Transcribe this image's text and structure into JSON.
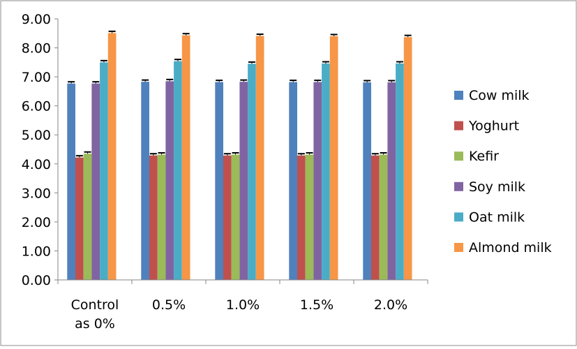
{
  "chart_data": {
    "type": "bar",
    "categories": [
      [
        "Control",
        "as 0%"
      ],
      [
        "0.5%"
      ],
      [
        "1.0%"
      ],
      [
        "1.5%"
      ],
      [
        "2.0%"
      ]
    ],
    "series": [
      {
        "name": "Cow milk",
        "color": "#4F81BD",
        "values": [
          6.77,
          6.83,
          6.82,
          6.82,
          6.81
        ]
      },
      {
        "name": "Yoghurt",
        "color": "#C0504D",
        "values": [
          4.22,
          4.29,
          4.29,
          4.29,
          4.29
        ]
      },
      {
        "name": "Kefir",
        "color": "#9BBB59",
        "values": [
          4.35,
          4.32,
          4.32,
          4.32,
          4.32
        ]
      },
      {
        "name": "Soy milk",
        "color": "#8064A2",
        "values": [
          6.77,
          6.85,
          6.83,
          6.82,
          6.81
        ]
      },
      {
        "name": "Oat milk",
        "color": "#4BACC6",
        "values": [
          7.5,
          7.54,
          7.45,
          7.46,
          7.46
        ]
      },
      {
        "name": "Almond milk",
        "color": "#F79646",
        "values": [
          8.51,
          8.43,
          8.41,
          8.4,
          8.37
        ]
      }
    ],
    "ylim": [
      0,
      9
    ],
    "yticks": [
      "0.00",
      "1.00",
      "2.00",
      "3.00",
      "4.00",
      "5.00",
      "6.00",
      "7.00",
      "8.00",
      "9.00"
    ],
    "grid": false,
    "error_bars": true,
    "legend_position": "right"
  }
}
